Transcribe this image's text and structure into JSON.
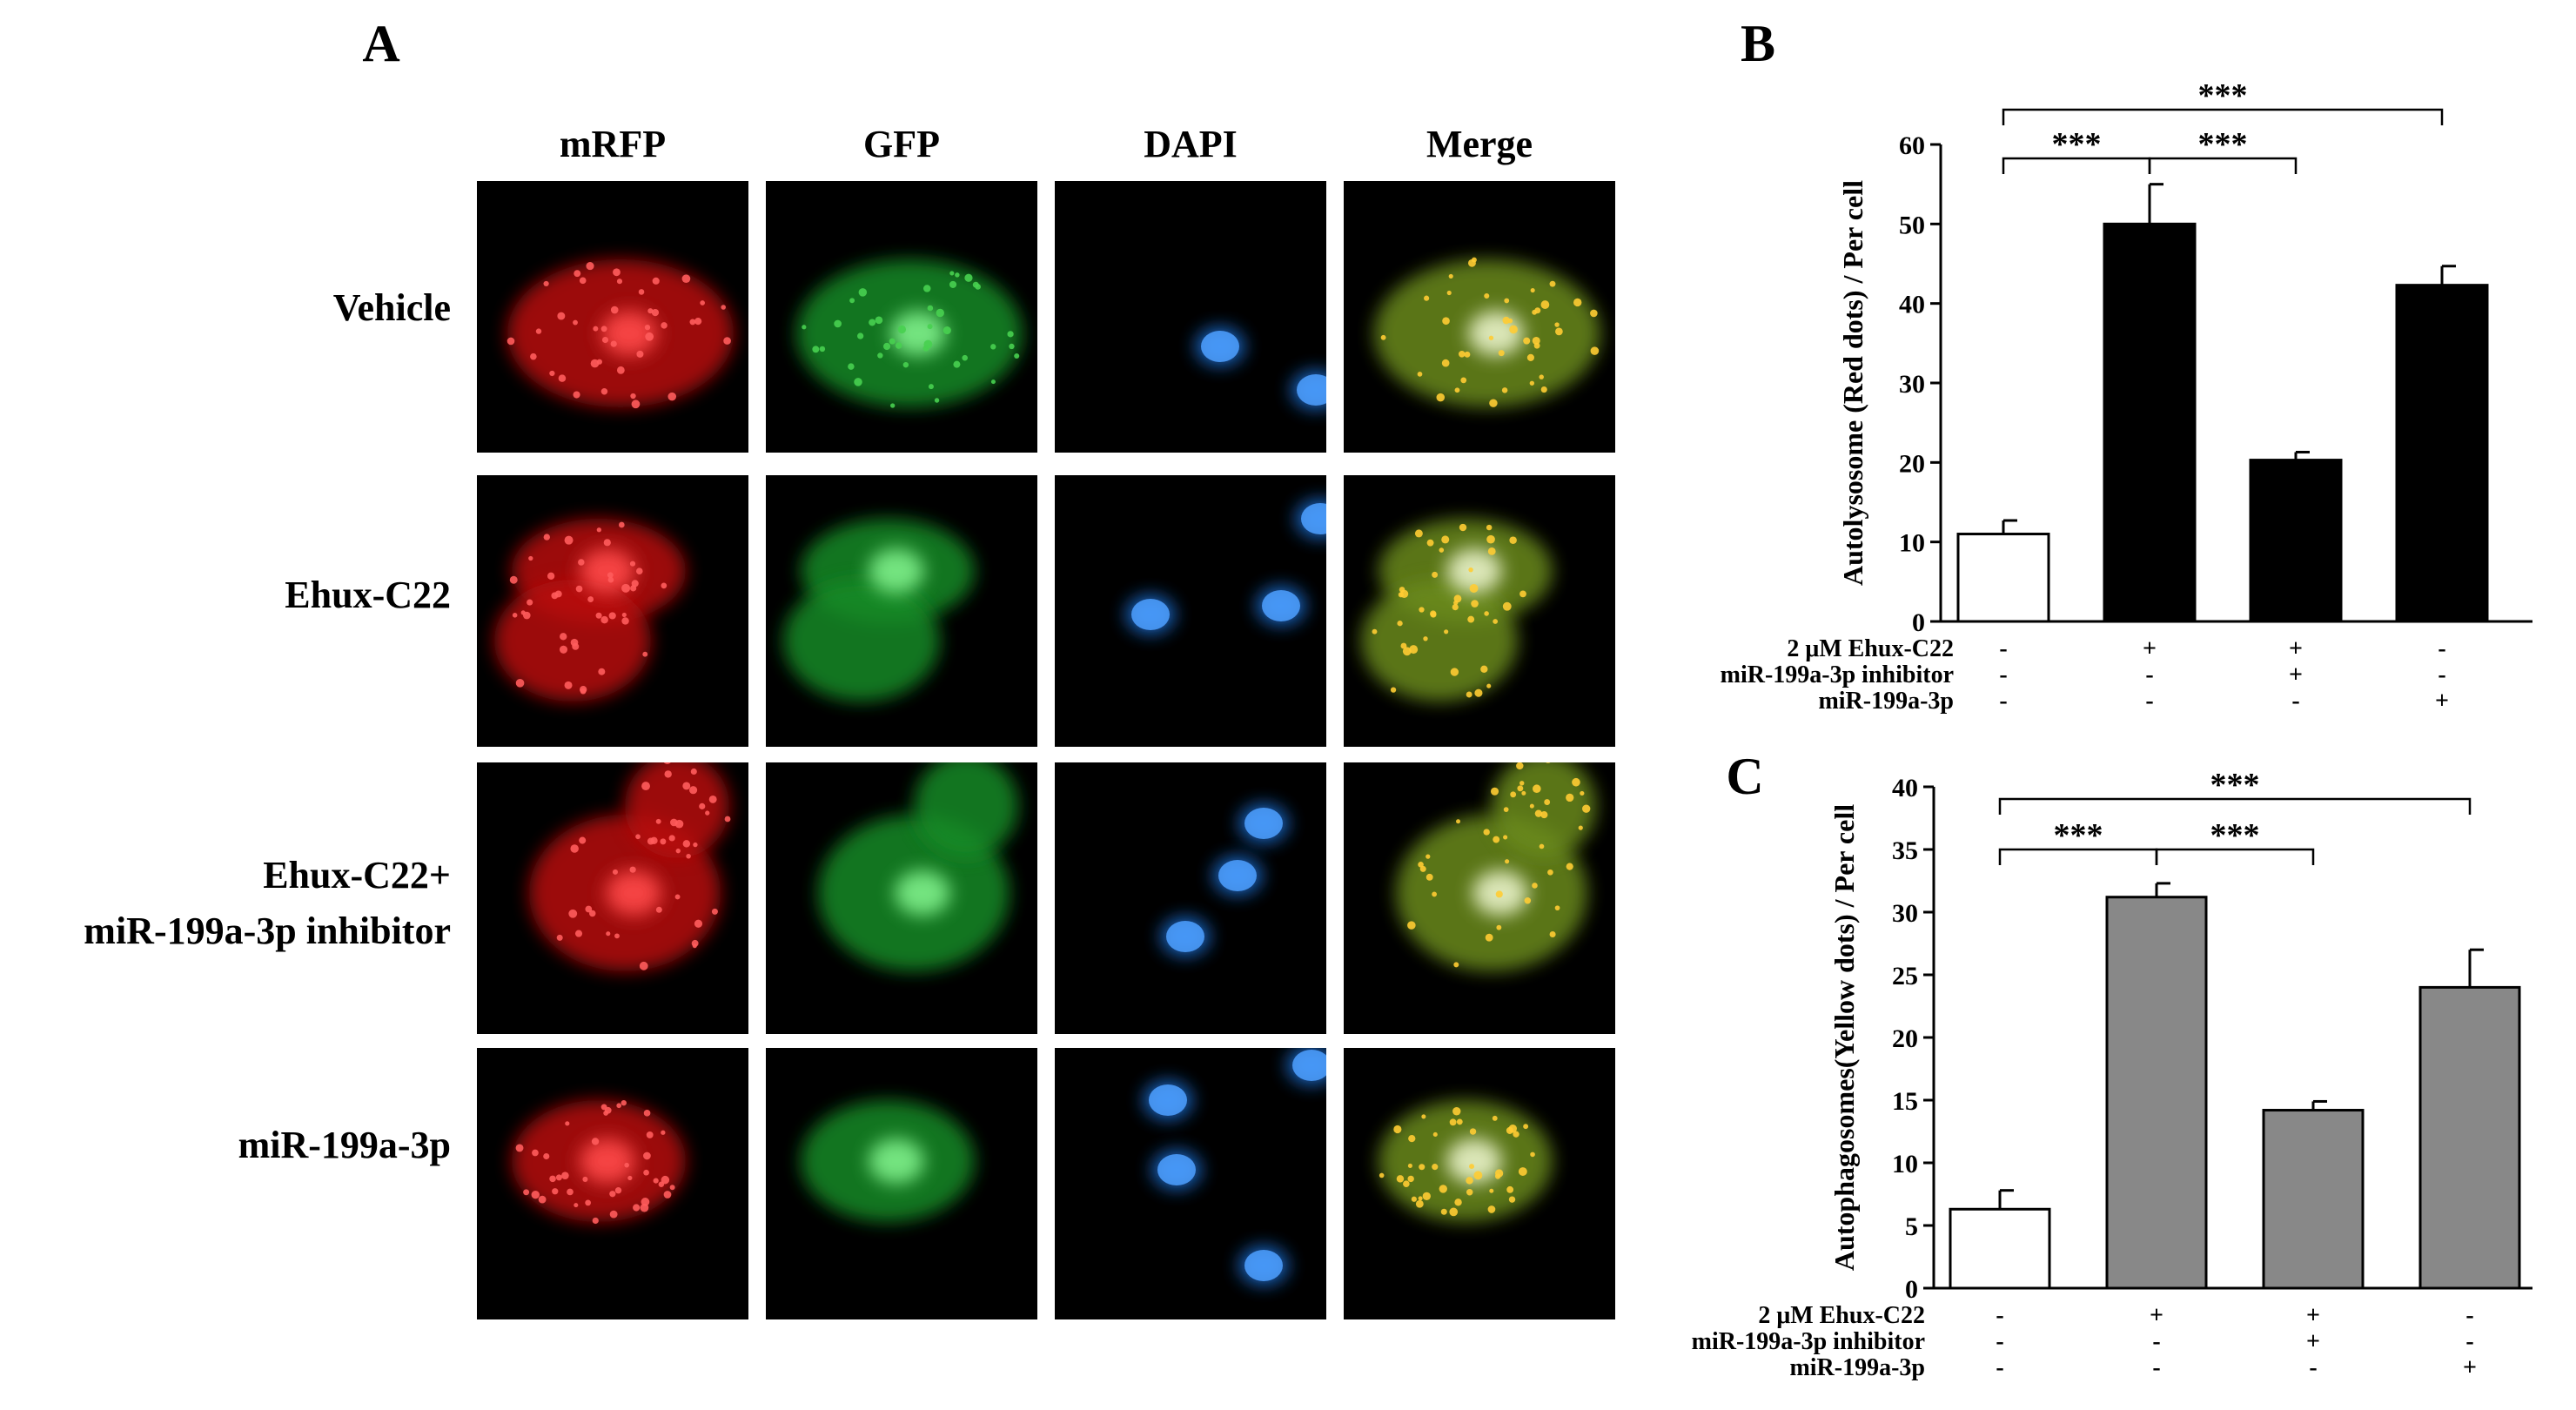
{
  "panel_a": {
    "letter": "A",
    "columns": [
      "mRFP",
      "GFP",
      "DAPI",
      "Merge"
    ],
    "rows": [
      {
        "label": [
          "Vehicle"
        ]
      },
      {
        "label": [
          "Ehux-C22"
        ]
      },
      {
        "label": [
          "Ehux-C22+",
          "miR-199a-3p inhibitor"
        ]
      },
      {
        "label": [
          "miR-199a-3p"
        ]
      }
    ],
    "channel_colors": {
      "mRFP": "#d01010",
      "GFP": "#22b035",
      "DAPI": "#1f72d8",
      "Merge": "#9aa028"
    }
  },
  "chart_data": [
    {
      "panel": "B",
      "type": "bar",
      "ylabel": "Autolysosome (Red dots) / Per cell",
      "ylim": [
        0,
        60
      ],
      "yticks": [
        0,
        10,
        20,
        30,
        40,
        50,
        60
      ],
      "values": [
        11,
        50,
        20.3,
        42.3
      ],
      "errors": [
        1.7,
        5.0,
        1.0,
        2.4
      ],
      "bar_colors": [
        "#ffffff",
        "#000000",
        "#000000",
        "#000000"
      ],
      "treatments": [
        {
          "name": "2 μM Ehux-C22",
          "signs": [
            "-",
            "+",
            "+",
            "-"
          ]
        },
        {
          "name": "miR-199a-3p inhibitor",
          "signs": [
            "-",
            "-",
            "+",
            "-"
          ]
        },
        {
          "name": "miR-199a-3p",
          "signs": [
            "-",
            "-",
            "-",
            "+"
          ]
        }
      ],
      "significance": [
        {
          "from": 0,
          "to": 1,
          "label": "***"
        },
        {
          "from": 1,
          "to": 2,
          "label": "***"
        },
        {
          "from": 0,
          "to": 3,
          "label": "***"
        }
      ]
    },
    {
      "panel": "C",
      "type": "bar",
      "ylabel": "Autophagosomes(Yellow dots) / Per cell",
      "ylim": [
        0,
        40
      ],
      "yticks": [
        0,
        5,
        10,
        15,
        20,
        25,
        30,
        35,
        40
      ],
      "values": [
        6.3,
        31.2,
        14.2,
        24.0
      ],
      "errors": [
        1.5,
        1.1,
        0.7,
        3.0
      ],
      "bar_colors": [
        "#ffffff",
        "#888888",
        "#888888",
        "#888888"
      ],
      "treatments": [
        {
          "name": "2 μM Ehux-C22",
          "signs": [
            "-",
            "+",
            "+",
            "-"
          ]
        },
        {
          "name": "miR-199a-3p inhibitor",
          "signs": [
            "-",
            "-",
            "+",
            "-"
          ]
        },
        {
          "name": "miR-199a-3p",
          "signs": [
            "-",
            "-",
            "-",
            "+"
          ]
        }
      ],
      "significance": [
        {
          "from": 0,
          "to": 1,
          "label": "***"
        },
        {
          "from": 1,
          "to": 2,
          "label": "***"
        },
        {
          "from": 0,
          "to": 3,
          "label": "***"
        }
      ]
    }
  ]
}
